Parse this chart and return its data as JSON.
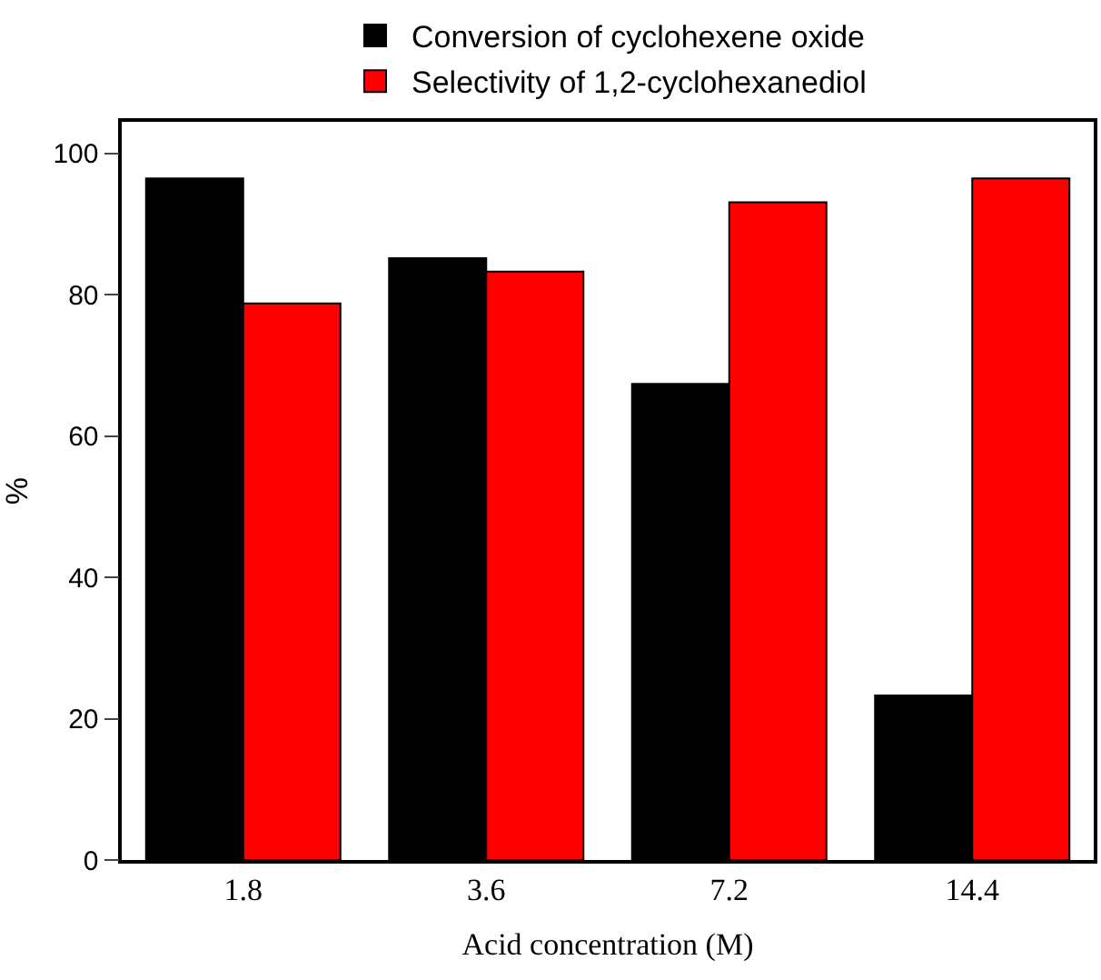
{
  "chart_data": {
    "type": "bar",
    "xlabel": "Acid concentration (M)",
    "ylabel": "%",
    "categories": [
      "1.8",
      "3.6",
      "7.2",
      "14.4"
    ],
    "series": [
      {
        "name": "Conversion of cyclohexene oxide",
        "color": "#000000",
        "values": [
          96.5,
          85.2,
          67.4,
          23.3
        ]
      },
      {
        "name": "Selectivity of 1,2-cyclohexanediol",
        "color": "#ff0000",
        "values": [
          78.8,
          83.3,
          93.1,
          96.5
        ]
      }
    ],
    "ylim": [
      0,
      104.5
    ],
    "yticks": [
      0,
      20,
      40,
      60,
      80,
      100
    ],
    "legend": "top"
  }
}
